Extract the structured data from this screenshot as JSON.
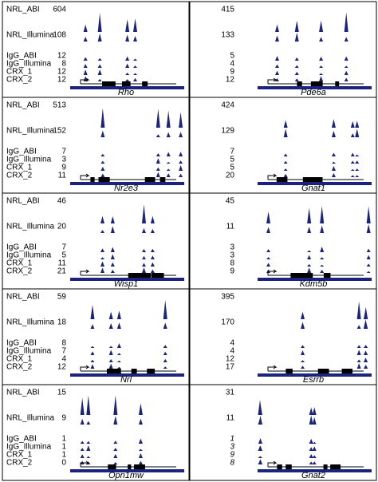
{
  "track_labels": [
    "NRL_ABI",
    "NRL_Illumina",
    "IgG_ABI",
    "IgG_Illumina",
    "CRX_1",
    "CRX_2"
  ],
  "panels": [
    {
      "gene": "Rho",
      "values": [
        "604",
        "108",
        "12",
        "8",
        "12",
        "12"
      ]
    },
    {
      "gene": "Pde6a",
      "values": [
        "415",
        "133",
        "5",
        "4",
        "9",
        "12"
      ]
    },
    {
      "gene": "Nr2e3",
      "values": [
        "513",
        "152",
        "7",
        "3",
        "9",
        "11"
      ]
    },
    {
      "gene": "Gnat1",
      "values": [
        "424",
        "129",
        "7",
        "5",
        "5",
        "20"
      ]
    },
    {
      "gene": "Wisp1",
      "values": [
        "46",
        "20",
        "7",
        "5",
        "11",
        "21"
      ]
    },
    {
      "gene": "Kdm5b",
      "values": [
        "45",
        "11",
        "3",
        "3",
        "8",
        "9"
      ]
    },
    {
      "gene": "Nrl",
      "values": [
        "59",
        "18",
        "8",
        "7",
        "4",
        "12"
      ]
    },
    {
      "gene": "Esrrb",
      "values": [
        "395",
        "170",
        "4",
        "4",
        "12",
        "17"
      ]
    },
    {
      "gene": "Opn1mw",
      "values": [
        "15",
        "9",
        "1",
        "1",
        "1",
        "0"
      ]
    },
    {
      "gene": "Gnat2",
      "values": [
        "31",
        "11",
        "1",
        "3",
        "9",
        "8"
      ]
    }
  ]
}
